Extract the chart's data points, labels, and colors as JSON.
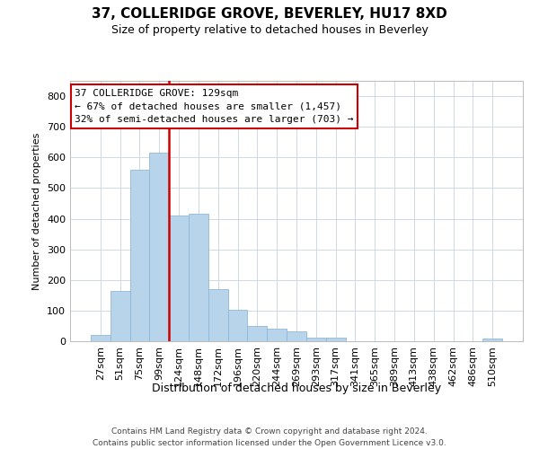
{
  "title": "37, COLLERIDGE GROVE, BEVERLEY, HU17 8XD",
  "subtitle": "Size of property relative to detached houses in Beverley",
  "xlabel": "Distribution of detached houses by size in Beverley",
  "ylabel": "Number of detached properties",
  "footer_line1": "Contains HM Land Registry data © Crown copyright and database right 2024.",
  "footer_line2": "Contains public sector information licensed under the Open Government Licence v3.0.",
  "categories": [
    "27sqm",
    "51sqm",
    "75sqm",
    "99sqm",
    "124sqm",
    "148sqm",
    "172sqm",
    "196sqm",
    "220sqm",
    "244sqm",
    "269sqm",
    "293sqm",
    "317sqm",
    "341sqm",
    "365sqm",
    "389sqm",
    "413sqm",
    "438sqm",
    "462sqm",
    "486sqm",
    "510sqm"
  ],
  "values": [
    20,
    165,
    560,
    615,
    410,
    415,
    170,
    103,
    50,
    40,
    33,
    12,
    11,
    0,
    0,
    0,
    0,
    0,
    0,
    0,
    8
  ],
  "bar_color": "#b8d4ea",
  "bar_edge_color": "#90b8d8",
  "vline_bin_index": 3,
  "vline_color": "#cc0000",
  "annotation_line1": "37 COLLERIDGE GROVE: 129sqm",
  "annotation_line2": "← 67% of detached houses are smaller (1,457)",
  "annotation_line3": "32% of semi-detached houses are larger (703) →",
  "annotation_box_edgecolor": "#cc0000",
  "ylim_max": 850,
  "yticks": [
    0,
    100,
    200,
    300,
    400,
    500,
    600,
    700,
    800
  ],
  "grid_color": "#d0d8e8",
  "title_fontsize": 11,
  "subtitle_fontsize": 9,
  "tick_fontsize": 8,
  "ylabel_fontsize": 8,
  "xlabel_fontsize": 9,
  "footer_fontsize": 6.5
}
